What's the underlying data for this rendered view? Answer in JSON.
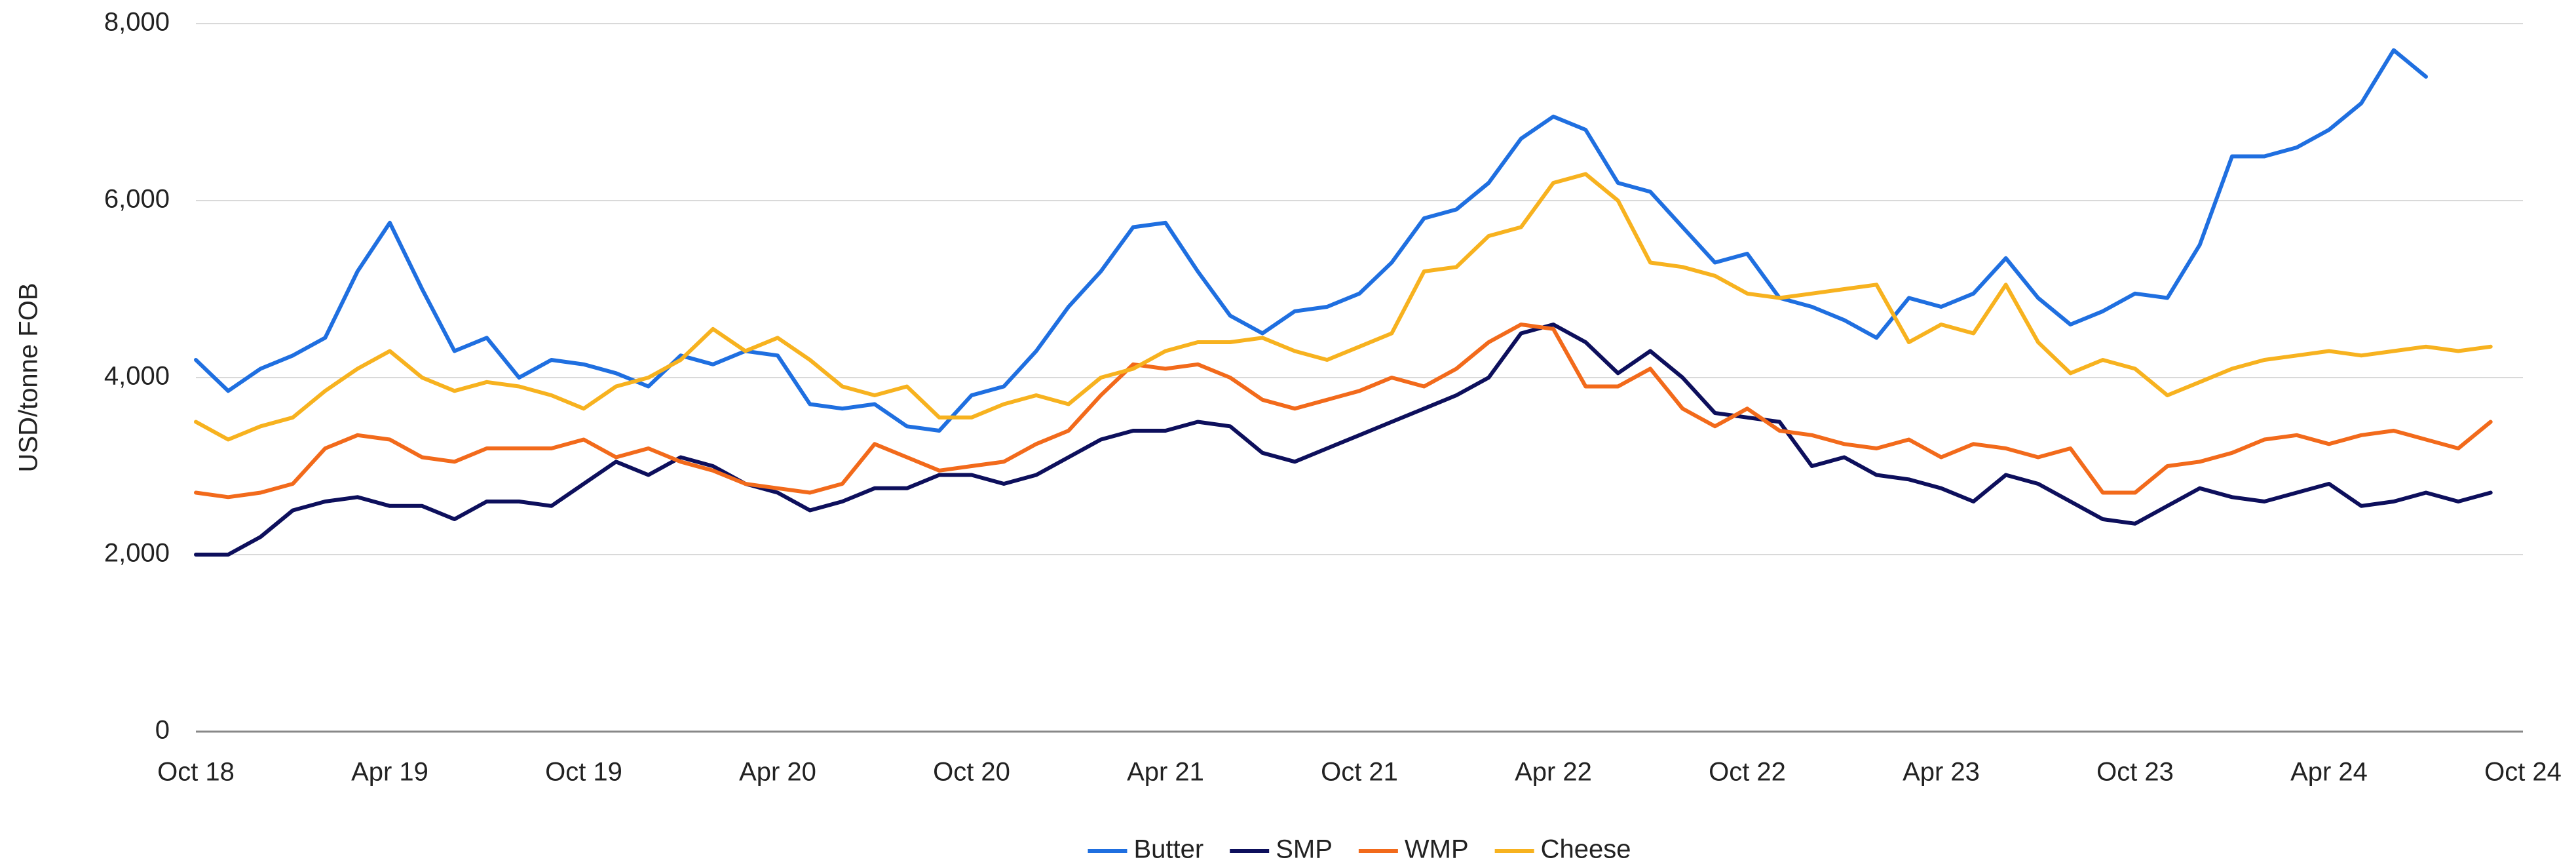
{
  "chart_data": {
    "type": "line",
    "y_label": "USD/tonne FOB",
    "categories": [
      "Oct 18",
      null,
      null,
      null,
      null,
      null,
      "Apr 19",
      null,
      null,
      null,
      null,
      null,
      "Oct 19",
      null,
      null,
      null,
      null,
      null,
      "Apr 20",
      null,
      null,
      null,
      null,
      null,
      "Oct 20",
      null,
      null,
      null,
      null,
      null,
      "Apr 21",
      null,
      null,
      null,
      null,
      null,
      "Oct 21",
      null,
      null,
      null,
      null,
      null,
      "Apr 22",
      null,
      null,
      null,
      null,
      null,
      "Oct 22",
      null,
      null,
      null,
      null,
      null,
      "Apr 23",
      null,
      null,
      null,
      null,
      null,
      "Oct 23",
      null,
      null,
      null,
      null,
      null,
      "Apr 24",
      null,
      null,
      null,
      null,
      null,
      "Oct 24"
    ],
    "ylim": [
      0,
      8000
    ],
    "yticks": [
      0,
      {
        "value": 2000,
        "label": "2,000"
      },
      {
        "value": 4000,
        "label": "4,000"
      },
      {
        "value": 6000,
        "label": "6,000"
      },
      {
        "value": 8000,
        "label": "8,000"
      }
    ],
    "grid": true,
    "legend": "bottom",
    "series": [
      {
        "name": "Butter",
        "color": "#1f6fe0",
        "values": [
          4200,
          3850,
          4100,
          4250,
          4450,
          5200,
          5750,
          5000,
          4300,
          4450,
          4000,
          4200,
          4150,
          4050,
          3900,
          4250,
          4150,
          4300,
          4250,
          3700,
          3650,
          3700,
          3450,
          3400,
          3800,
          3900,
          4300,
          4800,
          5200,
          5700,
          5750,
          5200,
          4700,
          4500,
          4750,
          4800,
          4950,
          5300,
          5800,
          5900,
          6200,
          6700,
          6950,
          6800,
          6200,
          6100,
          5700,
          5300,
          5400,
          4900,
          4800,
          4650,
          4450,
          4900,
          4800,
          4950,
          5350,
          4900,
          4600,
          4750,
          4950,
          4900,
          5500,
          6500,
          6500,
          6600,
          6800,
          7100,
          7700,
          7400,
          null,
          null,
          null
        ]
      },
      {
        "name": "SMP",
        "color": "#0d0f5c",
        "values": [
          2000,
          2000,
          2200,
          2500,
          2600,
          2650,
          2550,
          2550,
          2400,
          2600,
          2600,
          2550,
          2800,
          3050,
          2900,
          3100,
          3000,
          2800,
          2700,
          2500,
          2600,
          2750,
          2750,
          2900,
          2900,
          2800,
          2900,
          3100,
          3300,
          3400,
          3400,
          3500,
          3450,
          3150,
          3050,
          3200,
          3350,
          3500,
          3650,
          3800,
          4000,
          4500,
          4600,
          4400,
          4050,
          4300,
          4000,
          3600,
          3550,
          3500,
          3000,
          3100,
          2900,
          2850,
          2750,
          2600,
          2900,
          2800,
          2600,
          2400,
          2350,
          2550,
          2750,
          2650,
          2600,
          2700,
          2800,
          2550,
          2600,
          2700,
          2600,
          2700,
          null
        ]
      },
      {
        "name": "WMP",
        "color": "#f26a1b",
        "values": [
          2700,
          2650,
          2700,
          2800,
          3200,
          3350,
          3300,
          3100,
          3050,
          3200,
          3200,
          3200,
          3300,
          3100,
          3200,
          3050,
          2950,
          2800,
          2750,
          2700,
          2800,
          3250,
          3100,
          2950,
          3000,
          3050,
          3250,
          3400,
          3800,
          4150,
          4100,
          4150,
          4000,
          3750,
          3650,
          3750,
          3850,
          4000,
          3900,
          4100,
          4400,
          4600,
          4550,
          3900,
          3900,
          4100,
          3650,
          3450,
          3650,
          3400,
          3350,
          3250,
          3200,
          3300,
          3100,
          3250,
          3200,
          3100,
          3200,
          2700,
          2700,
          3000,
          3050,
          3150,
          3300,
          3350,
          3250,
          3350,
          3400,
          3300,
          3200,
          3500,
          null
        ]
      },
      {
        "name": "Cheese",
        "color": "#f7b21f",
        "values": [
          3500,
          3300,
          3450,
          3550,
          3850,
          4100,
          4300,
          4000,
          3850,
          3950,
          3900,
          3800,
          3650,
          3900,
          4000,
          4200,
          4550,
          4300,
          4450,
          4200,
          3900,
          3800,
          3900,
          3550,
          3550,
          3700,
          3800,
          3700,
          4000,
          4100,
          4300,
          4400,
          4400,
          4450,
          4300,
          4200,
          4350,
          4500,
          5200,
          5250,
          5600,
          5700,
          6200,
          6300,
          6000,
          5300,
          5250,
          5150,
          4950,
          4900,
          4950,
          5000,
          5050,
          4400,
          4600,
          4500,
          5050,
          4400,
          4050,
          4200,
          4100,
          3800,
          3950,
          4100,
          4200,
          4250,
          4300,
          4250,
          4300,
          4350,
          4300,
          4350,
          null
        ]
      }
    ]
  }
}
